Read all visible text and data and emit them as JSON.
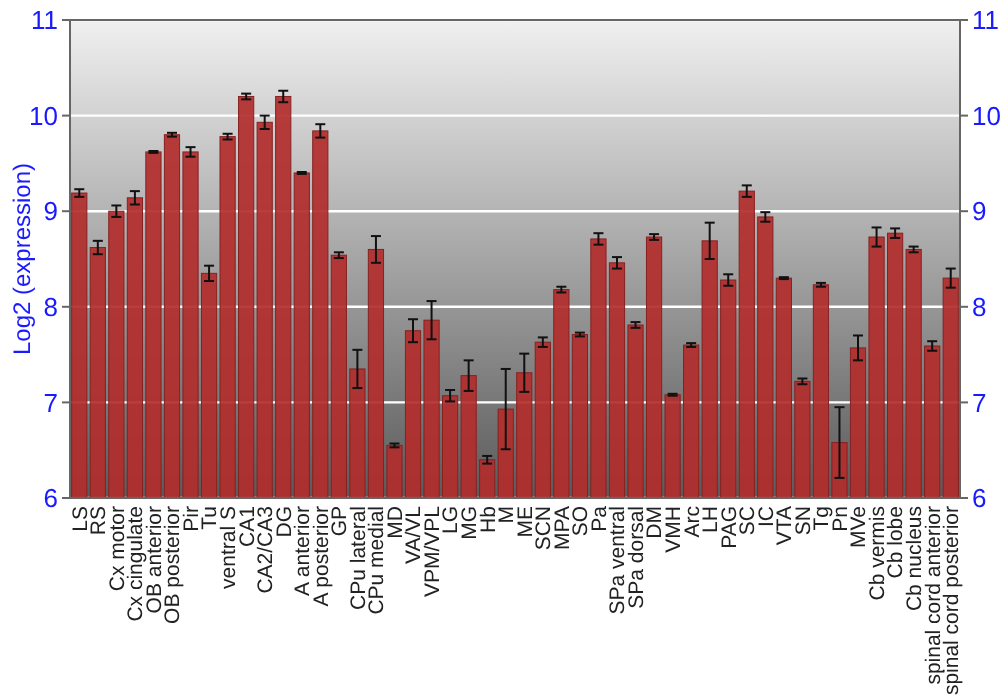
{
  "chart_data": {
    "type": "bar",
    "ylabel": "Log2 (expression)",
    "categories": [
      "LS",
      "RS",
      "Cx motor",
      "Cx cingulate",
      "OB anterior",
      "OB posterior",
      "Pir",
      "Tu",
      "ventral S",
      "CA1",
      "CA2/CA3",
      "DG",
      "A anterior",
      "A posterior",
      "GP",
      "CPu lateral",
      "CPu medial",
      "MD",
      "VA/VL",
      "VPM/VPL",
      "LG",
      "MG",
      "Hb",
      "M",
      "ME",
      "SCN",
      "MPA",
      "SO",
      "Pa",
      "SPa ventral",
      "SPa dorsal",
      "DM",
      "VMH",
      "Arc",
      "LH",
      "PAG",
      "SC",
      "IC",
      "VTA",
      "SN",
      "Tg",
      "Pn",
      "MVe",
      "Cb vermis",
      "Cb lobe",
      "Cb nucleus",
      "spinal cord anterior",
      "spinal cord posterior"
    ],
    "values": [
      9.19,
      8.62,
      9.0,
      9.14,
      9.62,
      9.8,
      9.62,
      8.35,
      9.78,
      10.2,
      9.93,
      10.2,
      9.4,
      9.84,
      8.54,
      7.35,
      8.6,
      6.55,
      7.75,
      7.86,
      7.07,
      7.28,
      6.4,
      6.93,
      7.31,
      7.63,
      8.18,
      7.71,
      8.71,
      8.46,
      7.81,
      8.73,
      7.08,
      7.6,
      8.69,
      8.28,
      9.21,
      8.94,
      8.3,
      7.22,
      8.23,
      6.58,
      7.57,
      8.73,
      8.77,
      8.6,
      7.59,
      8.3
    ],
    "errors": [
      0.04,
      0.07,
      0.06,
      0.07,
      0.01,
      0.02,
      0.05,
      0.08,
      0.03,
      0.03,
      0.07,
      0.06,
      0.01,
      0.07,
      0.03,
      0.2,
      0.14,
      0.02,
      0.12,
      0.2,
      0.06,
      0.16,
      0.04,
      0.42,
      0.2,
      0.05,
      0.03,
      0.02,
      0.06,
      0.06,
      0.03,
      0.03,
      0.01,
      0.02,
      0.19,
      0.06,
      0.06,
      0.05,
      0.01,
      0.03,
      0.02,
      0.37,
      0.13,
      0.1,
      0.05,
      0.03,
      0.05,
      0.1
    ],
    "color": "#b22c2c",
    "ylim": [
      6,
      11
    ],
    "yticks": [
      6,
      7,
      8,
      9,
      10,
      11
    ],
    "y2lim": [
      6,
      11
    ],
    "y2ticks": [
      6,
      7,
      8,
      9,
      10,
      11
    ],
    "grid": "y"
  }
}
